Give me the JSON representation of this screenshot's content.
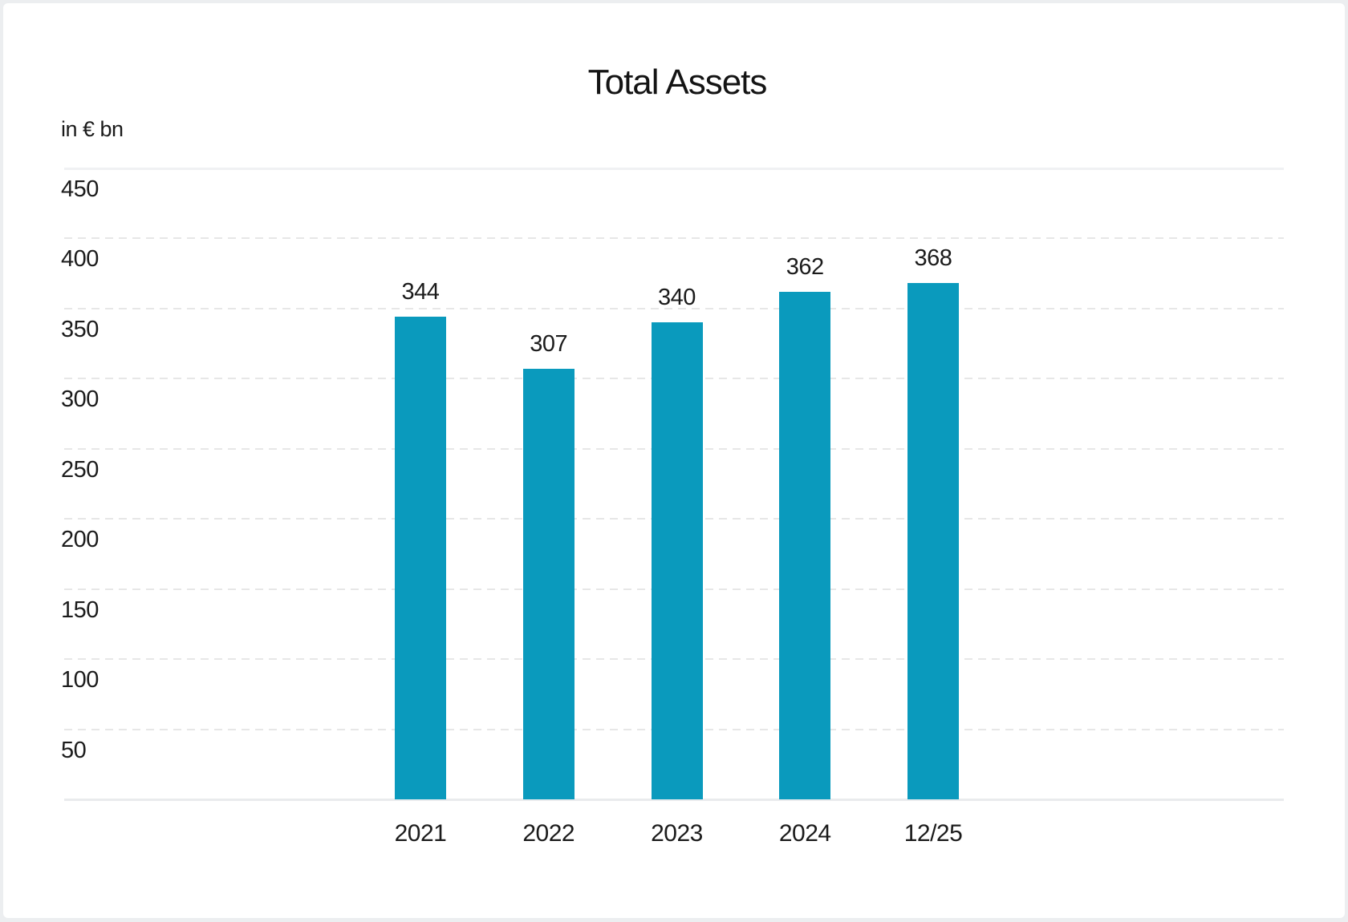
{
  "frame": {
    "background_color": "#ffffff",
    "border_color": "#eceef0"
  },
  "chart_data": {
    "type": "bar",
    "title": "Total Assets",
    "unit_label": "in € bn",
    "categories": [
      "2021",
      "2022",
      "2023",
      "2024",
      "12/25"
    ],
    "values": [
      344,
      307,
      340,
      362,
      368
    ],
    "value_labels_shown": true,
    "bar_color": "#0a9abd",
    "ylim": [
      0,
      450
    ],
    "yticks": [
      450,
      400,
      350,
      300,
      250,
      200,
      150,
      100,
      50
    ],
    "grid": "horizontal-dashed",
    "top_gridline_style": "solid",
    "baseline_style": "solid",
    "legend": "none",
    "text_color": "#1b1b1b",
    "gridline_color": "#e7e7e7"
  }
}
